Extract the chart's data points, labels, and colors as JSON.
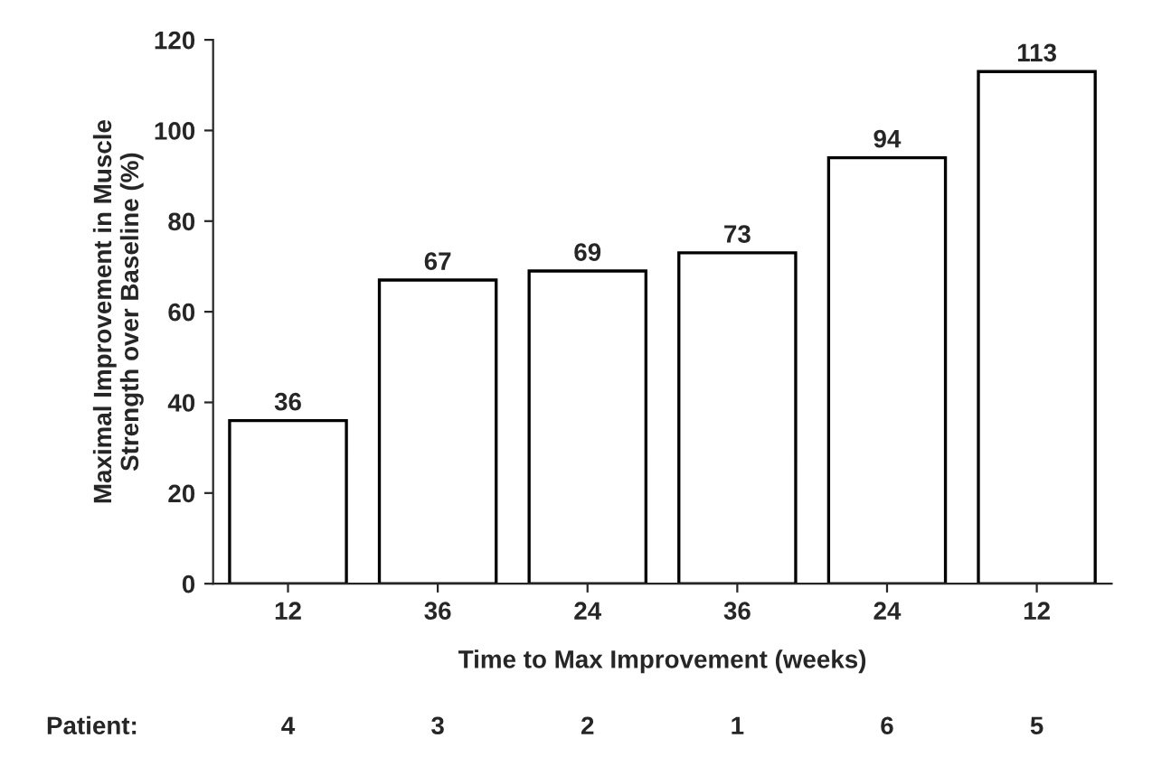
{
  "chart_data": {
    "type": "bar",
    "xlabel": "Time to Max Improvement (weeks)",
    "ylabel": "Maximal Improvement in Muscle\nStrength over Baseline (%)",
    "categories": [
      "12",
      "36",
      "24",
      "36",
      "24",
      "12"
    ],
    "values": [
      36,
      67,
      69,
      73,
      94,
      113
    ],
    "color": "#ffffff",
    "data_labels": true,
    "ylim": [
      0,
      120
    ],
    "yticks": [
      0,
      20,
      40,
      60,
      80,
      100,
      120
    ],
    "grid": false,
    "legend": false,
    "annotations": [
      "Patient:",
      "4",
      "3",
      "2",
      "1",
      "6",
      "5"
    ]
  }
}
